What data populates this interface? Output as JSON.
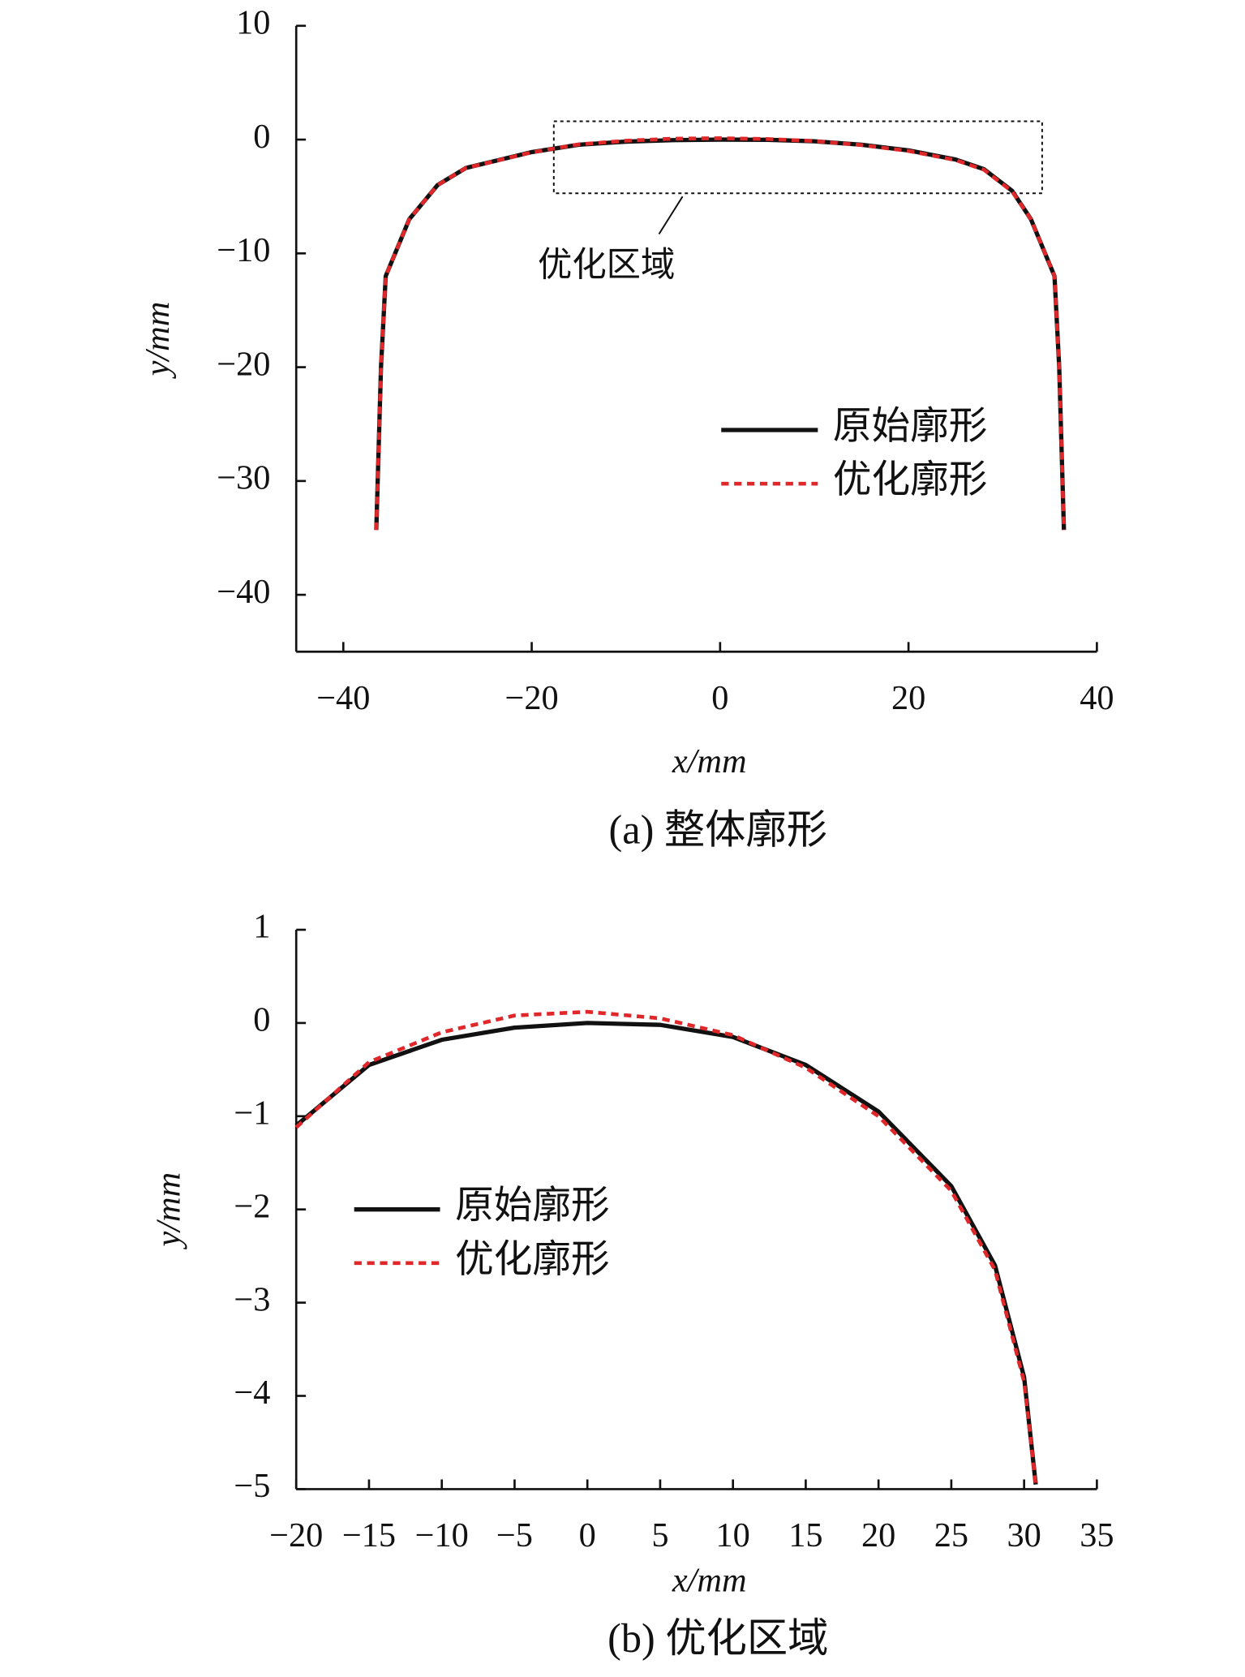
{
  "chart_data": [
    {
      "type": "line",
      "caption": "(a) 整体廓形",
      "x_label": "x/mm",
      "y_label": "y/mm",
      "xlim": [
        -45,
        40
      ],
      "ylim": [
        -45,
        10
      ],
      "legend": "center right",
      "annotation": "优化区域",
      "xticks": [
        {
          "value": -40,
          "label": "−40"
        },
        {
          "value": -20,
          "label": "−20"
        },
        0,
        20,
        40
      ],
      "yticks": [
        10,
        0,
        {
          "value": -10,
          "label": "−10"
        },
        {
          "value": -20,
          "label": "−20"
        },
        {
          "value": -30,
          "label": "−30"
        },
        {
          "value": -40,
          "label": "−40"
        }
      ],
      "x": [
        -36.5,
        -36,
        -35.5,
        -33,
        -30,
        -27,
        -20,
        -15,
        -10,
        -5,
        0,
        5,
        10,
        15,
        20,
        25,
        28,
        31,
        33,
        35.5,
        36,
        36.5
      ],
      "series": [
        {
          "name": "原始廓形",
          "color": "#111111",
          "values": [
            -34.3,
            -20,
            -12,
            -7,
            -4,
            -2.5,
            -1.1,
            -0.45,
            -0.18,
            -0.05,
            0,
            -0.02,
            -0.15,
            -0.45,
            -0.95,
            -1.75,
            -2.6,
            -4.5,
            -7,
            -12,
            -20,
            -34.3
          ]
        },
        {
          "name": "优化廓形",
          "color": "#e0282b",
          "values": [
            -34.3,
            -20,
            -12,
            -7,
            -4,
            -2.5,
            -1.12,
            -0.42,
            -0.1,
            0.08,
            0.12,
            0.05,
            -0.13,
            -0.48,
            -1,
            -1.8,
            -2.65,
            -4.55,
            -7,
            -12,
            -20,
            -34.3
          ]
        }
      ]
    },
    {
      "type": "line",
      "caption": "(b) 优化区域",
      "x_label": "x/mm",
      "y_label": "y/mm",
      "xlim": [
        -20,
        35
      ],
      "ylim": [
        -5,
        1
      ],
      "legend": "center left",
      "xticks": [
        {
          "value": -20,
          "label": "−20"
        },
        {
          "value": -15,
          "label": "−15"
        },
        {
          "value": -10,
          "label": "−10"
        },
        {
          "value": -5,
          "label": "−5"
        },
        0,
        5,
        10,
        15,
        20,
        25,
        30,
        35
      ],
      "yticks": [
        1,
        0,
        {
          "value": -1,
          "label": "−1"
        },
        {
          "value": -2,
          "label": "−2"
        },
        {
          "value": -3,
          "label": "−3"
        },
        {
          "value": -4,
          "label": "−4"
        },
        {
          "value": -5,
          "label": "−5"
        }
      ],
      "x": [
        -20,
        -15,
        -10,
        -5,
        0,
        5,
        10,
        15,
        20,
        25,
        28,
        30,
        30.8
      ],
      "series": [
        {
          "name": "原始廓形",
          "color": "#111111",
          "values": [
            -1.1,
            -0.45,
            -0.18,
            -0.05,
            0,
            -0.02,
            -0.15,
            -0.45,
            -0.95,
            -1.75,
            -2.6,
            -3.8,
            -4.95
          ]
        },
        {
          "name": "优化廓形",
          "color": "#e0282b",
          "values": [
            -1.12,
            -0.42,
            -0.1,
            0.08,
            0.12,
            0.05,
            -0.13,
            -0.48,
            -1,
            -1.8,
            -2.65,
            -3.85,
            -4.95
          ]
        }
      ]
    }
  ]
}
